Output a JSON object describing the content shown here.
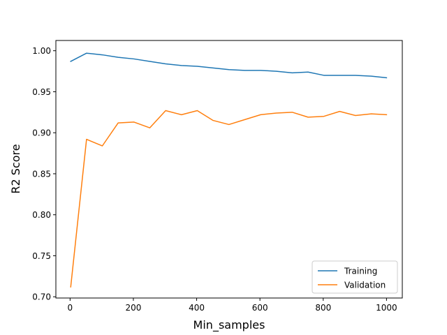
{
  "chart_data": {
    "type": "line",
    "title": "",
    "xlabel": "Min_samples",
    "ylabel": "R2 Score",
    "xlim": [
      -44.9,
      1049.9
    ],
    "ylim": [
      0.6985,
      1.0125
    ],
    "xticks": [
      0,
      200,
      400,
      600,
      800,
      1000
    ],
    "xtick_labels": [
      "0",
      "200",
      "400",
      "600",
      "800",
      "1000"
    ],
    "yticks": [
      0.7,
      0.75,
      0.8,
      0.85,
      0.9,
      0.95,
      1.0
    ],
    "ytick_labels": [
      "0.70",
      "0.75",
      "0.80",
      "0.85",
      "0.90",
      "0.95",
      "1.00"
    ],
    "grid": false,
    "legend_position": "lower-right",
    "x": [
      2,
      52,
      102,
      152,
      202,
      252,
      302,
      352,
      402,
      452,
      502,
      552,
      602,
      652,
      702,
      752,
      802,
      852,
      902,
      952,
      1000
    ],
    "series": [
      {
        "name": "Training",
        "color": "#1f77b4",
        "values": [
          0.987,
          0.997,
          0.995,
          0.992,
          0.99,
          0.987,
          0.984,
          0.982,
          0.981,
          0.979,
          0.977,
          0.976,
          0.976,
          0.975,
          0.973,
          0.974,
          0.97,
          0.97,
          0.97,
          0.969,
          0.967
        ]
      },
      {
        "name": "Validation",
        "color": "#ff7f0e",
        "values": [
          0.712,
          0.892,
          0.884,
          0.912,
          0.913,
          0.906,
          0.927,
          0.922,
          0.927,
          0.915,
          0.91,
          0.916,
          0.922,
          0.924,
          0.925,
          0.919,
          0.92,
          0.926,
          0.921,
          0.923,
          0.922
        ]
      }
    ]
  }
}
